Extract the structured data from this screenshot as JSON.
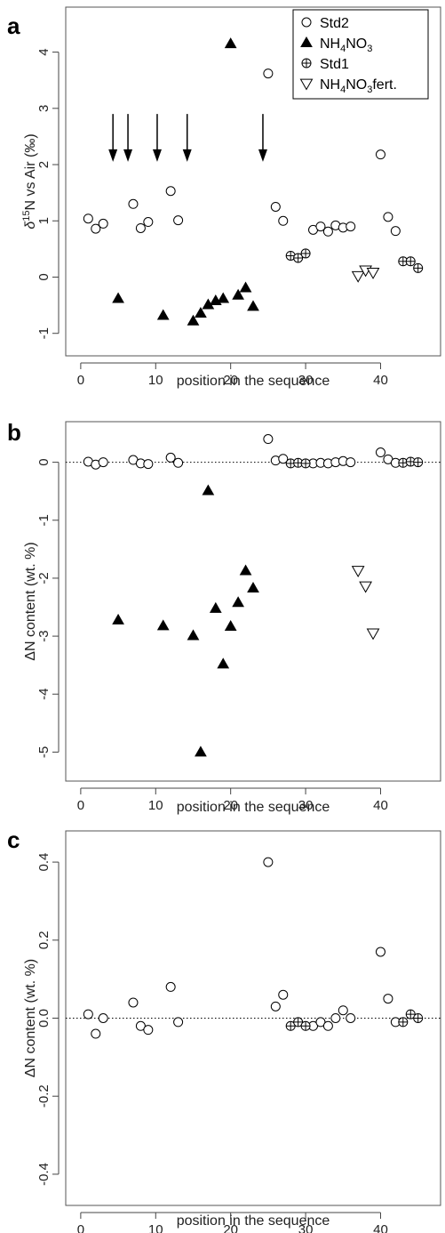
{
  "chart_data": [
    {
      "panel": "a",
      "type": "scatter",
      "xlabel": "position in the sequence",
      "ylabel_prefix": "δ",
      "ylabel_sup": "15",
      "ylabel_rest": "N vs Air (‰)",
      "xlim": [
        -2,
        48
      ],
      "ylim": [
        -1.4,
        4.8
      ],
      "xticks": [
        0,
        10,
        20,
        30,
        40
      ],
      "yticks": [
        -1,
        0,
        1,
        2,
        3,
        4
      ],
      "grid": false,
      "legend_position": "top-right",
      "legend": [
        {
          "marker": "circle",
          "label": "Std2",
          "sub": ""
        },
        {
          "marker": "triangle",
          "label": "NH",
          "sub": "4",
          "label2": "NO",
          "sub2": "3"
        },
        {
          "marker": "crossed-circle",
          "label": "Std1",
          "sub": ""
        },
        {
          "marker": "triangle-down",
          "label": "NH",
          "sub": "4",
          "label2": "NO",
          "sub2": "3",
          "label3": "fert."
        }
      ],
      "arrows_at_x": [
        4.3,
        6.3,
        10.2,
        14.2,
        24.3
      ],
      "series": [
        {
          "name": "Std2",
          "marker": "circle",
          "points": [
            [
              1,
              1.04
            ],
            [
              2,
              0.86
            ],
            [
              3,
              0.95
            ],
            [
              7,
              1.3
            ],
            [
              8,
              0.87
            ],
            [
              9,
              0.98
            ],
            [
              12,
              1.53
            ],
            [
              13,
              1.01
            ],
            [
              25,
              3.62
            ],
            [
              26,
              1.25
            ],
            [
              27,
              1.0
            ],
            [
              31,
              0.84
            ],
            [
              32,
              0.9
            ],
            [
              33,
              0.81
            ],
            [
              34,
              0.92
            ],
            [
              35,
              0.88
            ],
            [
              36,
              0.9
            ],
            [
              40,
              2.18
            ],
            [
              41,
              1.07
            ],
            [
              42,
              0.82
            ]
          ]
        },
        {
          "name": "NH4NO3",
          "marker": "triangle",
          "points": [
            [
              5,
              -0.38
            ],
            [
              11,
              -0.68
            ],
            [
              15,
              -0.78
            ],
            [
              16,
              -0.64
            ],
            [
              17,
              -0.49
            ],
            [
              18,
              -0.42
            ],
            [
              19,
              -0.38
            ],
            [
              20,
              4.15
            ],
            [
              21,
              -0.32
            ],
            [
              22,
              -0.19
            ],
            [
              23,
              -0.52
            ]
          ]
        },
        {
          "name": "Std1",
          "marker": "crossed-circle",
          "points": [
            [
              28,
              0.38
            ],
            [
              29,
              0.34
            ],
            [
              30,
              0.42
            ],
            [
              43,
              0.28
            ],
            [
              44,
              0.28
            ],
            [
              45,
              0.16
            ]
          ]
        },
        {
          "name": "NH4NO3fert.",
          "marker": "triangle-down",
          "points": [
            [
              37,
              0.02
            ],
            [
              38,
              0.12
            ],
            [
              39,
              0.08
            ]
          ]
        }
      ]
    },
    {
      "panel": "b",
      "type": "scatter",
      "xlabel": "position in the sequence",
      "ylabel": "ΔN content (wt. %)",
      "xlim": [
        -2,
        48
      ],
      "ylim": [
        -5.5,
        0.7
      ],
      "xticks": [
        0,
        10,
        20,
        30,
        40
      ],
      "yticks": [
        -5,
        -4,
        -3,
        -2,
        -1,
        0
      ],
      "grid": false,
      "reference_line_y": 0,
      "series": [
        {
          "name": "Std2",
          "marker": "circle",
          "points": [
            [
              1,
              0.01
            ],
            [
              2,
              -0.04
            ],
            [
              3,
              0.0
            ],
            [
              7,
              0.04
            ],
            [
              8,
              -0.02
            ],
            [
              9,
              -0.03
            ],
            [
              12,
              0.08
            ],
            [
              13,
              -0.01
            ],
            [
              25,
              0.4
            ],
            [
              26,
              0.03
            ],
            [
              27,
              0.06
            ],
            [
              31,
              -0.02
            ],
            [
              32,
              -0.01
            ],
            [
              33,
              -0.02
            ],
            [
              34,
              0.0
            ],
            [
              35,
              0.02
            ],
            [
              36,
              0.0
            ],
            [
              40,
              0.17
            ],
            [
              41,
              0.05
            ],
            [
              42,
              -0.01
            ]
          ]
        },
        {
          "name": "NH4NO3",
          "marker": "triangle",
          "points": [
            [
              5,
              -2.72
            ],
            [
              11,
              -2.82
            ],
            [
              15,
              -2.99
            ],
            [
              16,
              -5.0
            ],
            [
              17,
              -0.49
            ],
            [
              18,
              -2.52
            ],
            [
              19,
              -3.48
            ],
            [
              20,
              -2.83
            ],
            [
              21,
              -2.42
            ],
            [
              22,
              -1.87
            ],
            [
              23,
              -2.17
            ]
          ]
        },
        {
          "name": "Std1",
          "marker": "crossed-circle",
          "points": [
            [
              28,
              -0.02
            ],
            [
              29,
              -0.01
            ],
            [
              30,
              -0.02
            ],
            [
              43,
              -0.01
            ],
            [
              44,
              0.01
            ],
            [
              45,
              0.0
            ]
          ]
        },
        {
          "name": "NH4NO3fert.",
          "marker": "triangle-down",
          "points": [
            [
              37,
              -1.87
            ],
            [
              38,
              -2.14
            ],
            [
              39,
              -2.95
            ]
          ]
        }
      ]
    },
    {
      "panel": "c",
      "type": "scatter",
      "xlabel": "position in the sequence",
      "ylabel": "ΔN content (wt. %)",
      "xlim": [
        -2,
        48
      ],
      "ylim": [
        -0.48,
        0.48
      ],
      "xticks": [
        0,
        10,
        20,
        30,
        40
      ],
      "yticks": [
        -0.4,
        -0.2,
        0.0,
        0.2,
        0.4
      ],
      "ytick_decimals": 1,
      "grid": false,
      "reference_line_y": 0,
      "series": [
        {
          "name": "Std2",
          "marker": "circle",
          "points": [
            [
              1,
              0.01
            ],
            [
              2,
              -0.04
            ],
            [
              3,
              0.0
            ],
            [
              7,
              0.04
            ],
            [
              8,
              -0.02
            ],
            [
              9,
              -0.03
            ],
            [
              12,
              0.08
            ],
            [
              13,
              -0.01
            ],
            [
              25,
              0.4
            ],
            [
              26,
              0.03
            ],
            [
              27,
              0.06
            ],
            [
              31,
              -0.02
            ],
            [
              32,
              -0.01
            ],
            [
              33,
              -0.02
            ],
            [
              34,
              0.0
            ],
            [
              35,
              0.02
            ],
            [
              36,
              0.0
            ],
            [
              40,
              0.17
            ],
            [
              41,
              0.05
            ],
            [
              42,
              -0.01
            ]
          ]
        },
        {
          "name": "Std1",
          "marker": "crossed-circle",
          "points": [
            [
              28,
              -0.02
            ],
            [
              29,
              -0.01
            ],
            [
              30,
              -0.02
            ],
            [
              43,
              -0.01
            ],
            [
              44,
              0.01
            ],
            [
              45,
              0.0
            ]
          ]
        }
      ]
    }
  ]
}
